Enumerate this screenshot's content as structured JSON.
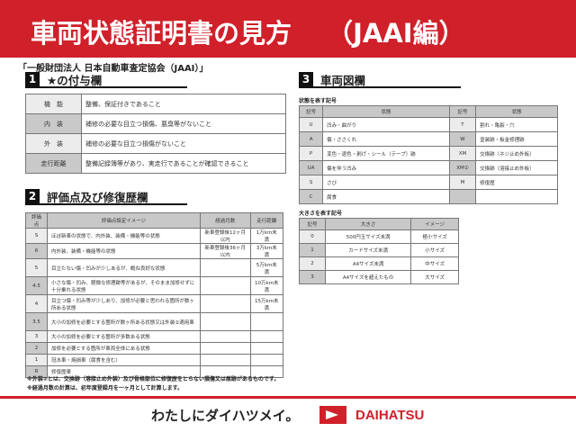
{
  "header": {
    "title": "車両状態証明書の見方　 （JAAI編）",
    "org": "「一般財団法人 日本自動車査定協会（JAAI）」"
  },
  "s1": {
    "num": "1",
    "title": "★の付与欄",
    "rows": [
      [
        "機　能",
        "整備、保証付きであること"
      ],
      [
        "内　装",
        "補修の必要な目立つ損傷、悪臭等がないこと"
      ],
      [
        "外　装",
        "補修の必要な目立つ損傷がないこと"
      ],
      [
        "走行距離",
        "整備記録簿等があり、実走行であることが確認できること"
      ]
    ]
  },
  "s2": {
    "num": "2",
    "title": "評価点及び修復歴欄",
    "headers": [
      "評価点",
      "評価点設定イメージ",
      "経過月数",
      "走行距離"
    ],
    "rows": [
      [
        "S",
        "ほぼ新車の状態で、内外装、装備・機能等の状態",
        "新車登録後12ヶ月以内",
        "1万km未満"
      ],
      [
        "6",
        "内外装、装備・機能等の状態",
        "新車登録後36ヶ月以内",
        "3万km未満"
      ],
      [
        "5",
        "目立たない傷・凹みが少しあるが、概ね良好な状態",
        "",
        "5万km未満"
      ],
      [
        "4.5",
        "小さな傷・凹み、軽微な修理跡等があるが、そのまま加修せずに十分乗れる状態",
        "",
        "10万km未満"
      ],
      [
        "4",
        "目立つ傷・凹み等が少しあり、加修が必要と思われる箇所が数ヶ所ある状態",
        "",
        "15万km未満"
      ],
      [
        "3.5",
        "大小の加修を必要とする箇所が数ヶ所ある状態又は外装②適用車",
        "",
        ""
      ],
      [
        "3",
        "大小の加修を必要とする箇所が多数ある状態",
        "",
        ""
      ],
      [
        "2",
        "加修を必要とする箇所が車両全体にある状態",
        "",
        ""
      ],
      [
        "1",
        "冠水車・焼損車（腐食を含む）",
        "",
        ""
      ],
      [
        "R",
        "修復歴車",
        "",
        ""
      ]
    ],
    "notes": [
      "※外装②とは、交換跡（溶接止め外装）及び骨格部位に修復歴をとらない損傷又は痕跡があるものです。",
      "※経過月数の計算は、初年度登録月を一ヶ月として計算します。"
    ]
  },
  "s3": {
    "num": "3",
    "title": "車両図欄",
    "state_title": "状態を表す記号",
    "state_headers": [
      "記号",
      "状態",
      "記号",
      "状態"
    ],
    "state_rows": [
      [
        "U",
        "凹み・曲がり",
        "T",
        "割れ・亀裂・穴"
      ],
      [
        "A",
        "傷・ささくれ",
        "W",
        "塗装跡・板金修理跡"
      ],
      [
        "P",
        "変色・退色・剥げ・シール（テープ）跡",
        "XM",
        "交換跡（ネジ止め外板）"
      ],
      [
        "UA",
        "傷を伴う凹み",
        "XM②",
        "交換跡（溶接止め外板）"
      ],
      [
        "S",
        "さび",
        "M",
        "修復歴"
      ],
      [
        "C",
        "腐食",
        "",
        ""
      ]
    ],
    "size_title": "大きさを表す記号",
    "size_headers": [
      "記号",
      "大きさ",
      "イメージ"
    ],
    "size_rows": [
      [
        "0",
        "500円玉サイズ未満",
        "極小サイズ"
      ],
      [
        "1",
        "カードサイズ未満",
        "小サイズ"
      ],
      [
        "2",
        "A4サイズ未満",
        "中サイズ"
      ],
      [
        "3",
        "A4サイズを超えたもの",
        "大サイズ"
      ]
    ]
  },
  "footer": {
    "slogan": "わたしにダイハツメイ。",
    "brand": "DAIHATSU",
    "brand_color": "#d0202a"
  }
}
